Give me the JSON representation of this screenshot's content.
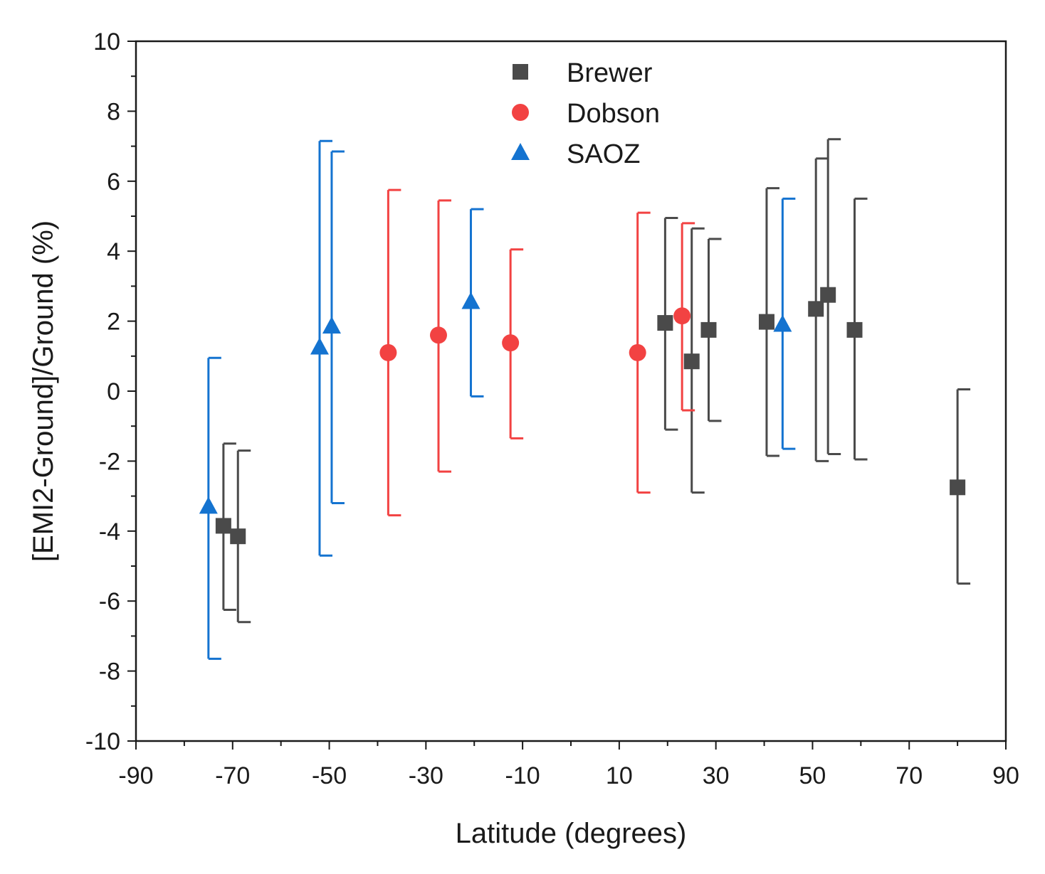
{
  "chart_data": {
    "type": "scatter",
    "title": "",
    "xlabel": "Latitude (degrees)",
    "ylabel": "[EMI2-Ground]/Ground (%)",
    "xlim": [
      -90,
      90
    ],
    "ylim": [
      -10,
      10
    ],
    "x_ticks": [
      -90,
      -70,
      -50,
      -30,
      -10,
      10,
      30,
      50,
      70,
      90
    ],
    "x_tick_labels": [
      "-90",
      "-70",
      "-50",
      "-30",
      "-10",
      "10",
      "30",
      "50",
      "70",
      "90"
    ],
    "y_ticks": [
      -10,
      -8,
      -6,
      -4,
      -2,
      0,
      2,
      4,
      6,
      8,
      10
    ],
    "y_tick_labels": [
      "-10",
      "-8",
      "-6",
      "-4",
      "-2",
      "0",
      "2",
      "4",
      "6",
      "8",
      "10"
    ],
    "grid": false,
    "legend_position": "top-center",
    "series": [
      {
        "name": "Brewer",
        "marker": "square",
        "color": "#4a4a4a",
        "points": [
          {
            "x": -71.9,
            "y": -3.85,
            "lo": -6.25,
            "hi": -1.5
          },
          {
            "x": -68.9,
            "y": -4.15,
            "lo": -6.6,
            "hi": -1.7
          },
          {
            "x": 19.5,
            "y": 1.95,
            "lo": -1.1,
            "hi": 4.95
          },
          {
            "x": 25.0,
            "y": 0.85,
            "lo": -2.9,
            "hi": 4.65
          },
          {
            "x": 28.5,
            "y": 1.75,
            "lo": -0.85,
            "hi": 4.35
          },
          {
            "x": 40.5,
            "y": 1.98,
            "lo": -1.85,
            "hi": 5.8
          },
          {
            "x": 50.7,
            "y": 2.35,
            "lo": -2.0,
            "hi": 6.65
          },
          {
            "x": 53.2,
            "y": 2.75,
            "lo": -1.8,
            "hi": 7.2
          },
          {
            "x": 58.7,
            "y": 1.75,
            "lo": -1.95,
            "hi": 5.5
          },
          {
            "x": 80.0,
            "y": -2.75,
            "lo": -5.5,
            "hi": 0.05
          }
        ]
      },
      {
        "name": "Dobson",
        "marker": "circle",
        "color": "#f24242",
        "points": [
          {
            "x": -37.8,
            "y": 1.1,
            "lo": -3.55,
            "hi": 5.75
          },
          {
            "x": -27.4,
            "y": 1.6,
            "lo": -2.3,
            "hi": 5.45
          },
          {
            "x": -12.5,
            "y": 1.38,
            "lo": -1.35,
            "hi": 4.05
          },
          {
            "x": 13.8,
            "y": 1.1,
            "lo": -2.9,
            "hi": 5.1
          },
          {
            "x": 23.0,
            "y": 2.15,
            "lo": -0.55,
            "hi": 4.8
          }
        ]
      },
      {
        "name": "SAOZ",
        "marker": "triangle",
        "color": "#1473d0",
        "points": [
          {
            "x": -75.0,
            "y": -3.3,
            "lo": -7.65,
            "hi": 0.95
          },
          {
            "x": -52.0,
            "y": 1.25,
            "lo": -4.7,
            "hi": 7.15
          },
          {
            "x": -49.5,
            "y": 1.85,
            "lo": -3.2,
            "hi": 6.85
          },
          {
            "x": -20.7,
            "y": 2.55,
            "lo": -0.15,
            "hi": 5.2
          },
          {
            "x": 43.8,
            "y": 1.9,
            "lo": -1.65,
            "hi": 5.5
          }
        ]
      }
    ]
  }
}
